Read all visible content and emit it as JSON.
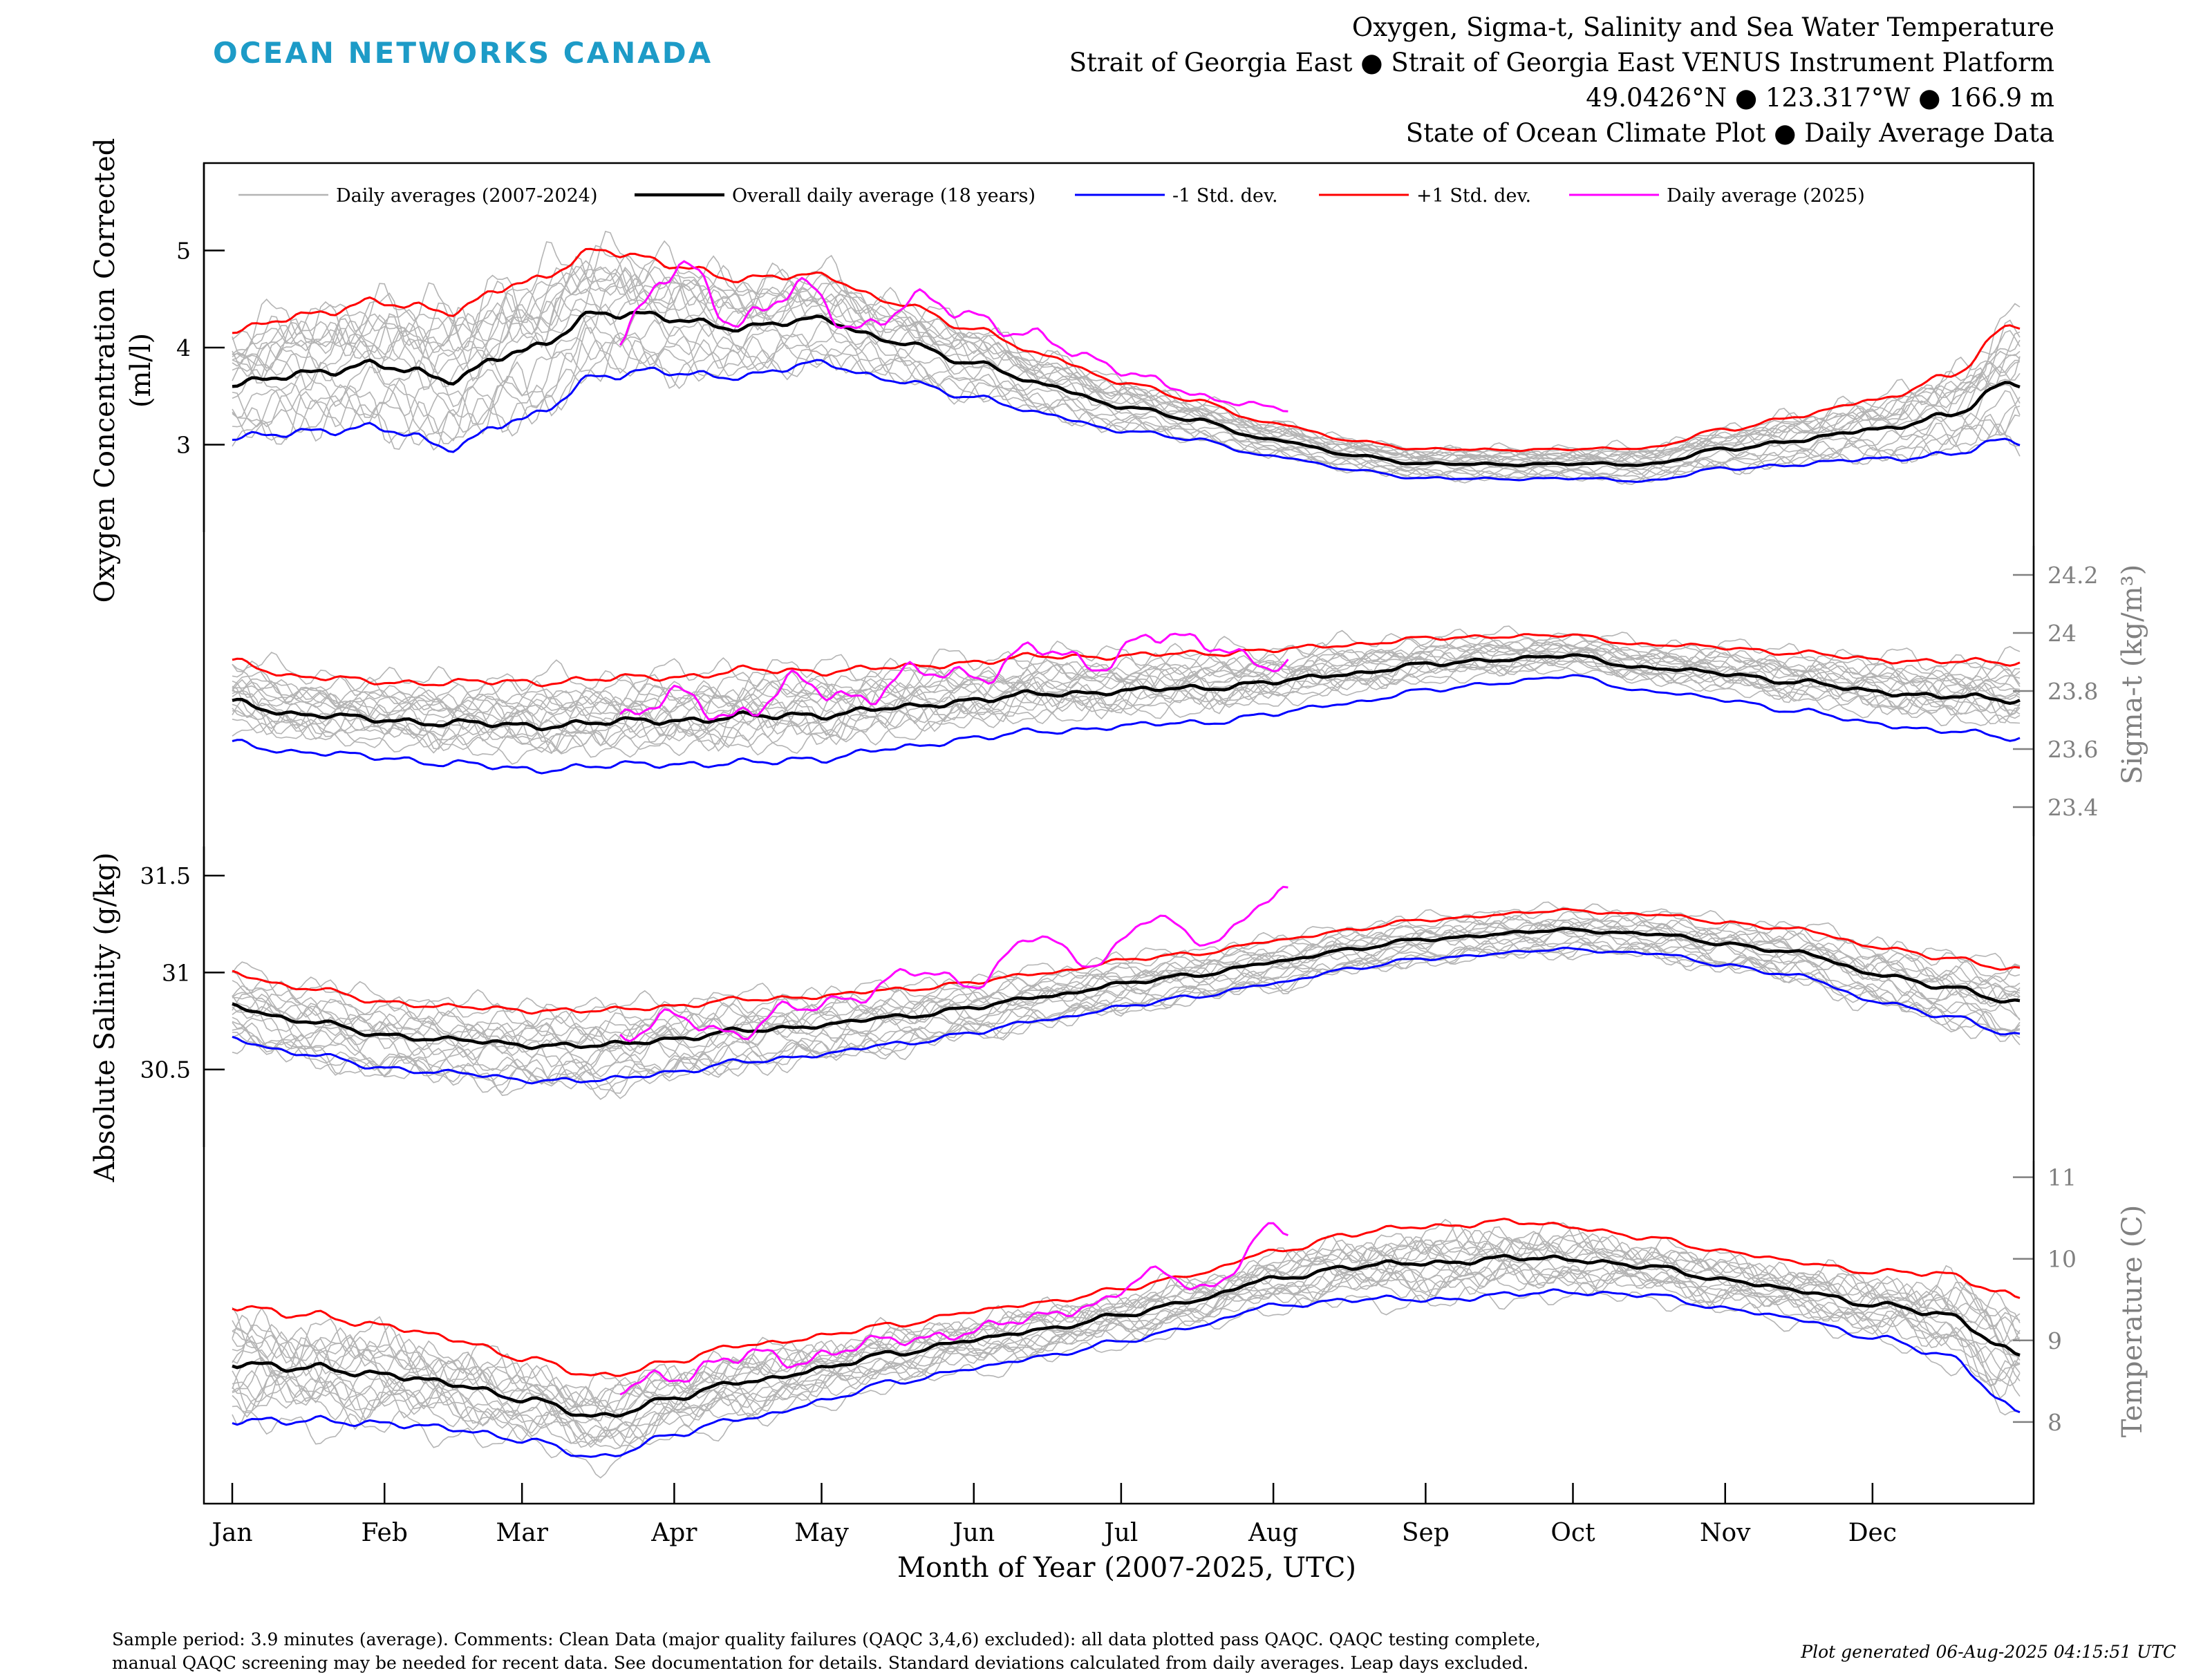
{
  "brand": "OCEAN NETWORKS CANADA",
  "header": {
    "title_lines": [
      "Oxygen, Sigma-t, Salinity and Sea Water Temperature",
      "Strait of Georgia East ● Strait of Georgia East VENUS Instrument Platform",
      "49.0426°N ● 123.317°W ● 166.9 m",
      "State of Ocean Climate Plot ● Daily Average Data"
    ]
  },
  "footer": {
    "comments": [
      "Sample period: 3.9 minutes (average). Comments: Clean Data (major quality failures (QAQC 3,4,6) excluded): all data plotted pass QAQC. QAQC testing complete,",
      "manual QAQC screening may be needed for recent data. See documentation for details. Standard deviations calculated from daily averages. Leap days excluded."
    ],
    "generated": "Plot generated 06-Aug-2025 04:15:51 UTC"
  },
  "colors": {
    "daily": "#b4b4b4",
    "overall": "#000000",
    "minus_std": "#0000ff",
    "plus_std": "#ff0000",
    "current": "#ff00ff",
    "sigma_axis": "#808080",
    "temp_axis": "#808080",
    "brand": "#1d9bc7"
  },
  "chart_data": {
    "type": "line",
    "xlabel": "Month of Year (2007-2025, UTC)",
    "x_unit": "day of year",
    "xlim": [
      1,
      365
    ],
    "months": [
      "Jan",
      "Feb",
      "Mar",
      "Apr",
      "May",
      "Jun",
      "Jul",
      "Aug",
      "Sep",
      "Oct",
      "Nov",
      "Dec"
    ],
    "month_start_days": [
      1,
      32,
      60,
      91,
      121,
      152,
      182,
      213,
      244,
      274,
      305,
      335
    ],
    "legend": {
      "position": "top, inside oxygen panel",
      "entries": [
        "Daily averages (2007-2024)",
        "Overall daily average (18 years)",
        "-1 Std. dev.",
        "+1 Std. dev.",
        "Daily average (2025)"
      ]
    },
    "panels": [
      {
        "name": "oxygen",
        "ylabel_lines": [
          "Oxygen Concentration Corrected",
          "(ml/l)"
        ],
        "axis_side": "left",
        "ylim": [
          2.1,
          5.9
        ],
        "ticks": [
          3,
          4,
          5
        ],
        "tick_labels": [
          "3",
          "4",
          "5"
        ],
        "knot_days": [
          1,
          15,
          32,
          46,
          60,
          75,
          91,
          106,
          121,
          136,
          152,
          167,
          182,
          197,
          213,
          228,
          244,
          259,
          274,
          289,
          305,
          320,
          335,
          350,
          365
        ],
        "overall": [
          3.6,
          3.75,
          3.8,
          3.7,
          3.95,
          4.35,
          4.3,
          4.2,
          4.3,
          4.05,
          3.85,
          3.6,
          3.4,
          3.25,
          3.05,
          2.9,
          2.8,
          2.8,
          2.8,
          2.8,
          2.95,
          3.05,
          3.15,
          3.3,
          3.65
        ],
        "std": [
          0.55,
          0.6,
          0.65,
          0.7,
          0.7,
          0.65,
          0.55,
          0.5,
          0.45,
          0.4,
          0.35,
          0.3,
          0.25,
          0.2,
          0.17,
          0.15,
          0.15,
          0.15,
          0.15,
          0.17,
          0.2,
          0.25,
          0.3,
          0.4,
          0.6
        ],
        "current_2025": {
          "start_day": 80,
          "end_day": 216,
          "knot_days": [
            80,
            92,
            104,
            116,
            128,
            140,
            152,
            164,
            176,
            188,
            200,
            212,
            216
          ],
          "values": [
            4.2,
            4.8,
            4.3,
            4.6,
            4.2,
            4.5,
            4.3,
            4.15,
            3.85,
            3.7,
            3.45,
            3.4,
            3.4
          ]
        }
      },
      {
        "name": "sigma_t",
        "ylabel": "Sigma-t (kg/m³)",
        "axis_side": "right",
        "ylim": [
          23.3,
          24.3
        ],
        "ticks": [
          23.4,
          23.6,
          23.8,
          24.0,
          24.2
        ],
        "tick_labels": [
          "23.4",
          "23.6",
          "23.8",
          "24",
          "24.2"
        ],
        "knot_days": [
          1,
          15,
          32,
          46,
          60,
          75,
          91,
          106,
          121,
          136,
          152,
          167,
          182,
          197,
          213,
          228,
          244,
          259,
          274,
          289,
          305,
          320,
          335,
          350,
          365
        ],
        "overall": [
          23.76,
          23.72,
          23.7,
          23.69,
          23.68,
          23.69,
          23.7,
          23.71,
          23.72,
          23.74,
          23.77,
          23.79,
          23.8,
          23.81,
          23.83,
          23.86,
          23.89,
          23.91,
          23.92,
          23.88,
          23.86,
          23.83,
          23.8,
          23.78,
          23.77
        ],
        "std": [
          0.14,
          0.13,
          0.13,
          0.14,
          0.15,
          0.15,
          0.15,
          0.16,
          0.15,
          0.14,
          0.13,
          0.13,
          0.12,
          0.12,
          0.11,
          0.1,
          0.09,
          0.08,
          0.07,
          0.08,
          0.09,
          0.1,
          0.11,
          0.12,
          0.13
        ],
        "current_2025": {
          "start_day": 80,
          "end_day": 216,
          "knot_days": [
            80,
            92,
            104,
            116,
            128,
            140,
            152,
            164,
            176,
            188,
            200,
            212,
            216
          ],
          "values": [
            23.7,
            23.78,
            23.72,
            23.82,
            23.78,
            23.86,
            23.85,
            23.95,
            23.88,
            24.0,
            23.95,
            23.9,
            23.9
          ]
        }
      },
      {
        "name": "salinity",
        "ylabel": "Absolute Salinity (g/kg)",
        "axis_side": "left",
        "ylim": [
          30.1,
          31.65
        ],
        "ticks": [
          30.5,
          31,
          31.5
        ],
        "tick_labels": [
          "30.5",
          "31",
          "31.5"
        ],
        "knot_days": [
          1,
          15,
          32,
          46,
          60,
          75,
          91,
          106,
          121,
          136,
          152,
          167,
          182,
          197,
          213,
          228,
          244,
          259,
          274,
          289,
          305,
          320,
          335,
          350,
          365
        ],
        "overall": [
          30.83,
          30.75,
          30.68,
          30.65,
          30.63,
          30.62,
          30.66,
          30.7,
          30.73,
          30.77,
          30.82,
          30.88,
          30.94,
          30.99,
          31.05,
          31.12,
          31.17,
          31.2,
          31.22,
          31.2,
          31.15,
          31.1,
          31.0,
          30.92,
          30.85
        ],
        "std": [
          0.17,
          0.17,
          0.17,
          0.17,
          0.18,
          0.18,
          0.17,
          0.16,
          0.15,
          0.14,
          0.13,
          0.12,
          0.12,
          0.11,
          0.11,
          0.1,
          0.1,
          0.1,
          0.1,
          0.1,
          0.11,
          0.12,
          0.14,
          0.15,
          0.17
        ],
        "current_2025": {
          "start_day": 80,
          "end_day": 216,
          "knot_days": [
            80,
            92,
            104,
            116,
            128,
            140,
            152,
            164,
            176,
            188,
            200,
            212,
            216
          ],
          "values": [
            30.65,
            30.78,
            30.68,
            30.82,
            30.88,
            31.0,
            30.95,
            31.18,
            31.05,
            31.28,
            31.15,
            31.38,
            31.42
          ]
        }
      },
      {
        "name": "temperature",
        "ylabel": "Temperature (C)",
        "axis_side": "right",
        "ylim": [
          7.0,
          11.2
        ],
        "ticks": [
          8,
          9,
          10,
          11
        ],
        "tick_labels": [
          "8",
          "9",
          "10",
          "11"
        ],
        "knot_days": [
          1,
          15,
          32,
          46,
          60,
          75,
          91,
          106,
          121,
          136,
          152,
          167,
          182,
          197,
          213,
          228,
          244,
          259,
          274,
          289,
          305,
          320,
          335,
          350,
          365
        ],
        "overall": [
          8.75,
          8.65,
          8.6,
          8.45,
          8.3,
          8.05,
          8.3,
          8.5,
          8.65,
          8.85,
          9.0,
          9.15,
          9.3,
          9.5,
          9.75,
          9.9,
          9.95,
          10.0,
          10.0,
          9.9,
          9.75,
          9.6,
          9.45,
          9.3,
          8.85
        ],
        "std": [
          0.7,
          0.65,
          0.6,
          0.55,
          0.5,
          0.5,
          0.45,
          0.45,
          0.4,
          0.35,
          0.35,
          0.33,
          0.32,
          0.32,
          0.33,
          0.4,
          0.45,
          0.45,
          0.4,
          0.35,
          0.35,
          0.35,
          0.4,
          0.5,
          0.7
        ],
        "current_2025": {
          "start_day": 80,
          "end_day": 216,
          "knot_days": [
            80,
            92,
            104,
            116,
            128,
            140,
            152,
            164,
            176,
            188,
            200,
            212,
            216
          ],
          "values": [
            8.4,
            8.6,
            8.8,
            8.75,
            8.95,
            9.0,
            9.15,
            9.25,
            9.45,
            9.8,
            9.65,
            10.35,
            10.3
          ]
        }
      }
    ]
  }
}
